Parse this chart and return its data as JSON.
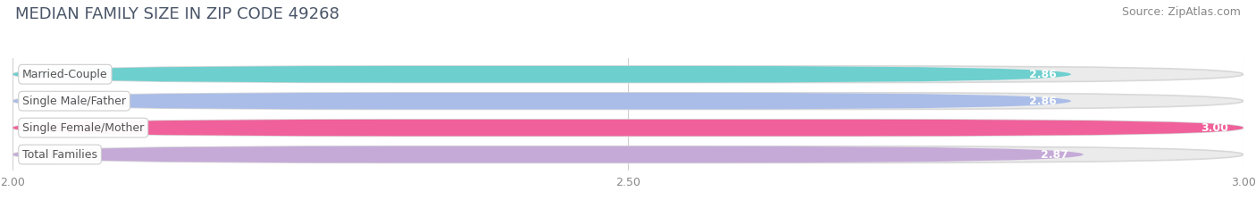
{
  "title": "MEDIAN FAMILY SIZE IN ZIP CODE 49268",
  "source": "Source: ZipAtlas.com",
  "categories": [
    "Married-Couple",
    "Single Male/Father",
    "Single Female/Mother",
    "Total Families"
  ],
  "values": [
    2.86,
    2.86,
    3.0,
    2.87
  ],
  "bar_colors": [
    "#6ecfcf",
    "#aabde8",
    "#f0609a",
    "#c5aad8"
  ],
  "xmin": 2.0,
  "xmax": 3.0,
  "xticks": [
    2.0,
    2.5,
    3.0
  ],
  "background_color": "#ffffff",
  "bar_bg_color": "#ebebeb",
  "title_color": "#4a5568",
  "source_color": "#888888",
  "title_fontsize": 13,
  "source_fontsize": 9,
  "value_fontsize": 9,
  "label_fontsize": 9,
  "tick_fontsize": 9
}
